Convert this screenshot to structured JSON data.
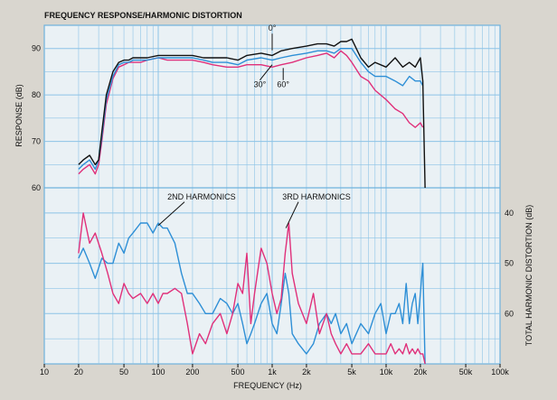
{
  "chart_data": {
    "type": "line",
    "title": "FREQUENCY RESPONSE/HARMONIC DISTORTION",
    "xlabel": "FREQUENCY (Hz)",
    "x_scale": "log",
    "xlim": [
      10,
      100000
    ],
    "x_ticks": [
      {
        "v": 10,
        "label": "10"
      },
      {
        "v": 20,
        "label": "20"
      },
      {
        "v": 50,
        "label": "50"
      },
      {
        "v": 100,
        "label": "100"
      },
      {
        "v": 200,
        "label": "200"
      },
      {
        "v": 500,
        "label": "500"
      },
      {
        "v": 1000,
        "label": "1k"
      },
      {
        "v": 2000,
        "label": "2k"
      },
      {
        "v": 5000,
        "label": "5k"
      },
      {
        "v": 10000,
        "label": "10k"
      },
      {
        "v": 20000,
        "label": "20k"
      },
      {
        "v": 50000,
        "label": "50k"
      },
      {
        "v": 100000,
        "label": "100k"
      }
    ],
    "grid": true,
    "panels": [
      {
        "id": "response",
        "ylabel": "RESPONSE (dB)",
        "ylim": [
          60,
          95
        ],
        "y_ticks": [
          60,
          70,
          80,
          90
        ],
        "annotations": [
          {
            "text": "0°",
            "x": 1000,
            "y": 93.8
          },
          {
            "text": "30°",
            "x": 780,
            "y": 81.7
          },
          {
            "text": "60°",
            "x": 1250,
            "y": 81.7
          }
        ],
        "series": [
          {
            "name": "0°",
            "color": "#111111",
            "x": [
              20,
              22,
              25,
              28,
              30,
              32,
              35,
              40,
              45,
              50,
              55,
              60,
              70,
              80,
              100,
              120,
              150,
              200,
              250,
              300,
              400,
              500,
              600,
              800,
              1000,
              1200,
              1500,
              2000,
              2500,
              3000,
              3500,
              4000,
              4500,
              5000,
              6000,
              7000,
              8000,
              10000,
              12000,
              14000,
              16000,
              18000,
              20000,
              21000,
              22000
            ],
            "y": [
              65,
              66,
              67,
              65,
              66,
              72,
              80,
              85,
              87,
              87.5,
              87.5,
              88,
              88,
              88,
              88.5,
              88.5,
              88.5,
              88.5,
              88,
              88,
              88,
              87.5,
              88.5,
              89,
              88.5,
              89.5,
              90,
              90.5,
              91,
              91,
              90.5,
              91.5,
              91.5,
              92,
              88,
              86,
              87,
              86,
              88,
              86,
              87,
              86,
              88,
              83,
              60
            ]
          },
          {
            "name": "30°",
            "color": "#2e8fd6",
            "x": [
              20,
              22,
              25,
              28,
              30,
              32,
              35,
              40,
              45,
              50,
              55,
              60,
              70,
              80,
              100,
              120,
              150,
              200,
              250,
              300,
              400,
              500,
              600,
              800,
              1000,
              1200,
              1500,
              2000,
              2500,
              3000,
              3500,
              4000,
              4500,
              5000,
              6000,
              7000,
              8000,
              10000,
              12000,
              14000,
              16000,
              18000,
              20000,
              21000
            ],
            "y": [
              64,
              65,
              66,
              64,
              66,
              71,
              79,
              84,
              86.5,
              87,
              87,
              87.5,
              87.5,
              87.5,
              88,
              88,
              88,
              88,
              87.5,
              87,
              87,
              86.5,
              87.5,
              88,
              87.5,
              88,
              88.5,
              89,
              89.5,
              89.5,
              89,
              90,
              90,
              90,
              87,
              85,
              84,
              84,
              83,
              82,
              84,
              83,
              83,
              82
            ]
          },
          {
            "name": "60°",
            "color": "#e0307a",
            "x": [
              20,
              22,
              25,
              28,
              30,
              32,
              35,
              40,
              45,
              50,
              55,
              60,
              70,
              80,
              100,
              120,
              150,
              200,
              250,
              300,
              400,
              500,
              600,
              800,
              1000,
              1200,
              1500,
              2000,
              2500,
              3000,
              3500,
              4000,
              4500,
              5000,
              6000,
              7000,
              8000,
              10000,
              12000,
              14000,
              16000,
              18000,
              20000,
              21000
            ],
            "y": [
              63,
              64,
              65,
              63,
              65,
              70,
              78,
              83.5,
              86,
              86.5,
              87,
              87,
              87,
              87.5,
              88,
              87.5,
              87.5,
              87.5,
              87,
              86.5,
              86,
              86,
              86.5,
              86.5,
              86,
              86.5,
              87,
              88,
              88.5,
              89,
              88,
              89.5,
              88.5,
              87,
              84,
              83,
              81,
              79,
              77,
              76,
              74,
              73,
              74,
              73
            ]
          }
        ]
      },
      {
        "id": "distortion",
        "ylabel": "TOTAL HARMONIC DISTORTION (dB)",
        "ylabel_side": "right",
        "ylim": [
          70,
          35
        ],
        "y_ticks": [
          40,
          50,
          60
        ],
        "annotations": [
          {
            "text": "2ND HARMONICS",
            "x": 240,
            "y": 37.3
          },
          {
            "text": "3RD HARMONICS",
            "x": 2450,
            "y": 37.3
          }
        ],
        "series": [
          {
            "name": "2ND HARMONICS",
            "color": "#2e8fd6",
            "x": [
              20,
              22,
              25,
              28,
              32,
              36,
              40,
              45,
              50,
              55,
              60,
              70,
              80,
              90,
              100,
              110,
              120,
              140,
              160,
              180,
              200,
              230,
              260,
              300,
              350,
              400,
              450,
              500,
              550,
              600,
              650,
              700,
              800,
              900,
              1000,
              1100,
              1200,
              1300,
              1400,
              1500,
              1700,
              2000,
              2300,
              2600,
              3000,
              3300,
              3600,
              4000,
              4500,
              5000,
              6000,
              7000,
              8000,
              9000,
              10000,
              11000,
              12000,
              13000,
              14000,
              15000,
              16000,
              17000,
              18000,
              19000,
              20000,
              21000,
              22000
            ],
            "y": [
              49,
              47,
              50,
              53,
              49,
              50,
              50,
              46,
              48,
              45,
              44,
              42,
              42,
              44,
              42,
              43,
              43,
              46,
              52,
              56,
              56,
              58,
              60,
              60,
              57,
              58,
              60,
              58,
              62,
              66,
              64,
              62,
              58,
              56,
              62,
              64,
              58,
              52,
              56,
              64,
              66,
              68,
              66,
              62,
              60,
              62,
              60,
              64,
              62,
              66,
              62,
              64,
              60,
              58,
              64,
              60,
              60,
              58,
              62,
              54,
              62,
              58,
              56,
              62,
              56,
              50,
              70
            ]
          },
          {
            "name": "3RD HARMONICS",
            "color": "#e0307a",
            "x": [
              20,
              22,
              25,
              28,
              32,
              36,
              40,
              45,
              50,
              55,
              60,
              70,
              80,
              90,
              100,
              110,
              120,
              140,
              160,
              180,
              200,
              230,
              260,
              300,
              350,
              400,
              450,
              500,
              550,
              600,
              650,
              700,
              800,
              900,
              1000,
              1100,
              1200,
              1300,
              1400,
              1500,
              1700,
              2000,
              2300,
              2600,
              3000,
              3300,
              3600,
              4000,
              4500,
              5000,
              6000,
              7000,
              8000,
              9000,
              10000,
              11000,
              12000,
              13000,
              14000,
              15000,
              16000,
              17000,
              18000,
              19000,
              20000,
              21000,
              22000
            ],
            "y": [
              48,
              40,
              46,
              44,
              48,
              52,
              56,
              58,
              54,
              56,
              57,
              56,
              58,
              56,
              58,
              56,
              56,
              55,
              56,
              62,
              68,
              64,
              66,
              62,
              60,
              64,
              60,
              54,
              56,
              48,
              62,
              56,
              47,
              50,
              56,
              60,
              57,
              48,
              42,
              52,
              58,
              62,
              56,
              64,
              60,
              64,
              66,
              68,
              66,
              68,
              68,
              66,
              68,
              68,
              68,
              66,
              68,
              67,
              68,
              66,
              68,
              67,
              68,
              67,
              68,
              68,
              70
            ]
          }
        ]
      }
    ]
  }
}
